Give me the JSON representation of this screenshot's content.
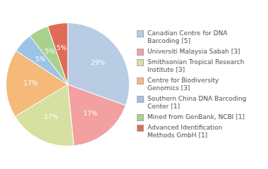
{
  "chart_data": {
    "type": "pie",
    "categories": [
      "Canadian Centre for DNA\nBarcoding [5]",
      "Universiti Malaysia Sabah [3]",
      "Smithsonian Tropical Research\nInstitute [3]",
      "Centre for Biodiversity\nGenomics [3]",
      "Southern China DNA Barcoding\nCenter [1]",
      "Mined from GenBank, NCBI [1]",
      "Advanced Identification\nMethods GmbH [1]"
    ],
    "values": [
      29,
      17,
      17,
      17,
      5,
      5,
      5
    ],
    "value_labels": [
      "29%",
      "17%",
      "17%",
      "17%",
      "5%",
      "5%",
      "5%"
    ],
    "colors": [
      "#b8cce4",
      "#f2a0a0",
      "#d6e0a0",
      "#f5b97a",
      "#9dc3e6",
      "#a9d18e",
      "#e06b57"
    ],
    "data_labels": true,
    "legend": "right"
  }
}
